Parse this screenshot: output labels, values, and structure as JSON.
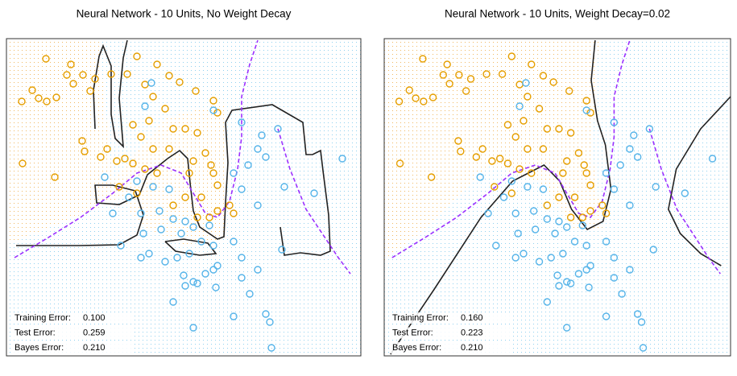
{
  "chart_data": [
    {
      "type": "scatter",
      "title": "Neural Network - 10 Units, No Weight Decay",
      "xlim": [
        0,
        440
      ],
      "ylim": [
        0,
        394
      ],
      "series": [
        {
          "color": "#e69f00",
          "x": [
            49,
            80,
            75,
            83,
            32,
            19,
            40,
            50,
            62,
            104,
            110,
            95,
            130,
            150,
            162,
            187,
            202,
            172,
            182,
            197,
            215,
            235,
            257,
            262,
            222,
            237,
            207,
            177,
            157,
            167,
            182,
            202,
            232,
            247,
            254,
            257,
            262,
            277,
            282,
            262,
            252,
            242,
            222,
            237,
            94,
            97,
            125,
            137,
            147,
            157,
            117,
            20,
            60,
            140,
            162,
            172,
            187,
            227,
            207
          ],
          "y": [
            369,
            362,
            349,
            338,
            330,
            316,
            320,
            316,
            321,
            329,
            344,
            349,
            350,
            350,
            372,
            362,
            348,
            337,
            322,
            307,
            340,
            329,
            317,
            302,
            282,
            277,
            282,
            292,
            287,
            272,
            257,
            257,
            242,
            252,
            237,
            227,
            212,
            187,
            177,
            180,
            172,
            197,
            197,
            172,
            267,
            254,
            257,
            242,
            245,
            239,
            247,
            239,
            222,
            210,
            202,
            232,
            227,
            227,
            187
          ]
        },
        {
          "color": "#56b4e9",
          "x": [
            180,
            172,
            257,
            292,
            317,
            337,
            312,
            322,
            300,
            282,
            292,
            312,
            345,
            382,
            417,
            162,
            182,
            202,
            190,
            167,
            152,
            132,
            142,
            167,
            192,
            207,
            222,
            232,
            252,
            242,
            257,
            227,
            212,
            197,
            177,
            282,
            292,
            262,
            247,
            232,
            222,
            207,
            220,
            237,
            260,
            292,
            302,
            312,
            342,
            322,
            327,
            282,
            232,
            329,
            257,
            122,
            170,
            217
          ],
          "y": [
            339,
            310,
            305,
            290,
            274,
            282,
            257,
            247,
            237,
            227,
            207,
            187,
            210,
            202,
            245,
            217,
            210,
            207,
            180,
            177,
            197,
            177,
            137,
            122,
            157,
            170,
            167,
            160,
            162,
            142,
            137,
            127,
            122,
            117,
            127,
            142,
            122,
            112,
            102,
            92,
            87,
            67,
            100,
            90,
            85,
            97,
            77,
            107,
            132,
            52,
            42,
            49,
            35,
            10,
            107,
            222,
            152,
            152
          ]
        }
      ],
      "lines": [
        {
          "color": "#222222",
          "style": "solid",
          "x": [
            12,
            90,
            140,
            162,
            170,
            160,
            132,
            110,
            112,
            140,
            165,
            175,
            200,
            215,
            225,
            228,
            232,
            240,
            262,
            270,
            272,
            275,
            272,
            280,
            330,
            368,
            372,
            380,
            390,
            393,
            400,
            402,
            390,
            365,
            345,
            340,
            null,
            110,
            108,
            115,
            120,
            130,
            130,
            135,
            145,
            140,
            145,
            150,
            null,
            197,
            210,
            240,
            260,
            250,
            220,
            197
          ],
          "y": [
            137,
            137,
            138,
            150,
            175,
            205,
            212,
            212,
            190,
            188,
            200,
            225,
            245,
            255,
            245,
            215,
            180,
            160,
            145,
            148,
            190,
            240,
            290,
            305,
            312,
            290,
            250,
            250,
            255,
            230,
            175,
            130,
            125,
            128,
            125,
            160,
            null,
            282,
            330,
            372,
            385,
            360,
            300,
            270,
            260,
            320,
            370,
            392,
            null,
            142,
            130,
            125,
            127,
            140,
            145,
            142
          ]
        },
        {
          "color": "#9b30ff",
          "style": "dashed",
          "x": [
            10,
            52,
            92,
            132,
            162,
            192,
            217,
            232,
            247,
            262,
            277,
            287,
            292,
            292,
            302,
            312,
            null,
            337,
            352,
            372,
            392,
            412,
            427
          ],
          "y": [
            122,
            147,
            172,
            202,
            227,
            237,
            227,
            202,
            177,
            172,
            192,
            232,
            272,
            322,
            362,
            392,
            null,
            282,
            232,
            182,
            152,
            122,
            102
          ]
        }
      ],
      "annotations": [
        {
          "name": "Training Error:",
          "value": 0.1,
          "label": "0.100"
        },
        {
          "name": "Test Error:",
          "value": 0.259,
          "label": "0.259"
        },
        {
          "name": "Bayes Error:",
          "value": 0.21,
          "label": "0.210"
        }
      ]
    },
    {
      "type": "scatter",
      "title": "Neural Network - 10 Units, Weight Decay=0.02",
      "xlim": [
        0,
        440
      ],
      "ylim": [
        0,
        394
      ],
      "series": [
        {
          "color": "#e69f00",
          "x": [
            49,
            80,
            75,
            83,
            32,
            19,
            40,
            50,
            62,
            104,
            110,
            95,
            130,
            150,
            162,
            187,
            202,
            172,
            182,
            197,
            215,
            235,
            257,
            262,
            222,
            237,
            207,
            177,
            157,
            167,
            182,
            202,
            232,
            247,
            254,
            257,
            262,
            277,
            282,
            262,
            252,
            242,
            222,
            237,
            94,
            97,
            125,
            137,
            147,
            157,
            117,
            20,
            60,
            140,
            162,
            172,
            187,
            227,
            207
          ],
          "y": [
            369,
            362,
            349,
            338,
            330,
            316,
            320,
            316,
            321,
            329,
            344,
            349,
            350,
            350,
            372,
            362,
            348,
            337,
            322,
            307,
            340,
            329,
            317,
            302,
            282,
            277,
            282,
            292,
            287,
            272,
            257,
            257,
            242,
            252,
            237,
            227,
            212,
            187,
            177,
            180,
            172,
            197,
            197,
            172,
            267,
            254,
            257,
            242,
            245,
            239,
            247,
            239,
            222,
            210,
            202,
            232,
            227,
            227,
            187
          ]
        },
        {
          "color": "#56b4e9",
          "x": [
            180,
            172,
            257,
            292,
            317,
            337,
            312,
            322,
            300,
            282,
            292,
            312,
            345,
            382,
            417,
            162,
            182,
            202,
            190,
            167,
            152,
            132,
            142,
            167,
            192,
            207,
            222,
            232,
            252,
            242,
            257,
            227,
            212,
            197,
            177,
            282,
            292,
            262,
            247,
            232,
            222,
            207,
            220,
            237,
            260,
            292,
            302,
            312,
            342,
            322,
            327,
            282,
            232,
            329,
            257,
            122,
            170,
            217
          ],
          "y": [
            339,
            310,
            305,
            290,
            274,
            282,
            257,
            247,
            237,
            227,
            207,
            187,
            210,
            202,
            245,
            217,
            210,
            207,
            180,
            177,
            197,
            177,
            137,
            122,
            157,
            170,
            167,
            160,
            162,
            142,
            137,
            127,
            122,
            117,
            127,
            142,
            122,
            112,
            102,
            92,
            87,
            67,
            100,
            90,
            85,
            97,
            77,
            107,
            132,
            52,
            42,
            49,
            35,
            10,
            107,
            222,
            152,
            152
          ]
        }
      ],
      "lines": [
        {
          "color": "#222222",
          "style": "solid",
          "x": [
            8,
            63,
            123,
            163,
            203,
            223,
            238,
            258,
            278,
            288,
            281,
            271,
            263,
            268,
            null,
            440,
            402,
            371,
            361,
            376,
            402,
            428
          ],
          "y": [
            2,
            82,
            172,
            217,
            237,
            217,
            182,
            157,
            167,
            207,
            262,
            292,
            342,
            392,
            null,
            322,
            282,
            232,
            182,
            152,
            127,
            112
          ]
        },
        {
          "color": "#9b30ff",
          "style": "dashed",
          "x": [
            10,
            52,
            92,
            132,
            162,
            192,
            217,
            232,
            247,
            262,
            277,
            287,
            292,
            292,
            302,
            312,
            null,
            337,
            352,
            372,
            392,
            412,
            427
          ],
          "y": [
            122,
            147,
            172,
            202,
            227,
            237,
            227,
            202,
            177,
            172,
            192,
            232,
            272,
            322,
            362,
            392,
            null,
            282,
            232,
            182,
            152,
            122,
            102
          ]
        }
      ],
      "annotations": [
        {
          "name": "Training Error:",
          "value": 0.16,
          "label": "0.160"
        },
        {
          "name": "Test Error:",
          "value": 0.223,
          "label": "0.223"
        },
        {
          "name": "Bayes Error:",
          "value": 0.21,
          "label": "0.210"
        }
      ]
    }
  ]
}
